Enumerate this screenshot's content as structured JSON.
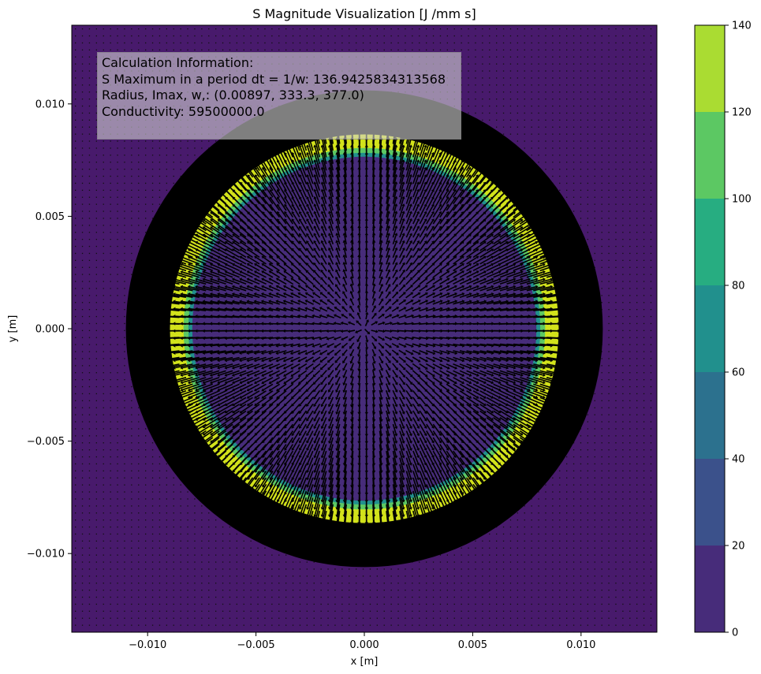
{
  "chart_data": {
    "type": "heatmap",
    "title": "S Magnitude Visualization [J /mm s]",
    "xlabel": "x [m]",
    "ylabel": "y [m]",
    "xlim": [
      -0.0135,
      0.0135
    ],
    "ylim": [
      -0.0135,
      0.0135
    ],
    "x_ticks": [
      -0.01,
      -0.005,
      0.0,
      0.005,
      0.01
    ],
    "x_tick_labels": [
      "−0.010",
      "−0.005",
      "0.000",
      "0.005",
      "0.010"
    ],
    "y_ticks": [
      -0.01,
      -0.005,
      0.0,
      0.005,
      0.01
    ],
    "y_tick_labels": [
      "−0.010",
      "−0.005",
      "0.000",
      "0.005",
      "0.010"
    ],
    "colorbar": {
      "levels": [
        0,
        20,
        40,
        60,
        80,
        100,
        120,
        140
      ],
      "tick_labels": [
        "0",
        "20",
        "40",
        "60",
        "80",
        "100",
        "120",
        "140"
      ],
      "colors": [
        "#472c7a",
        "#3b518b",
        "#2c718e",
        "#21908d",
        "#27ad81",
        "#5cc863",
        "#aadc32",
        "#d2e21b"
      ]
    },
    "conductor_radius": 0.00897,
    "outer_ring_radius": 0.0108,
    "background_color": "#481a6c",
    "ring_color": "#000000",
    "annotation": {
      "lines": [
        "Calculation Information:",
        "S Maximum in a period dt = 1/w: 136.9425834313568",
        "Radius, Imax, w,: (0.00897, 333.3, 377.0)",
        "Conductivity: 59500000.0"
      ]
    }
  }
}
